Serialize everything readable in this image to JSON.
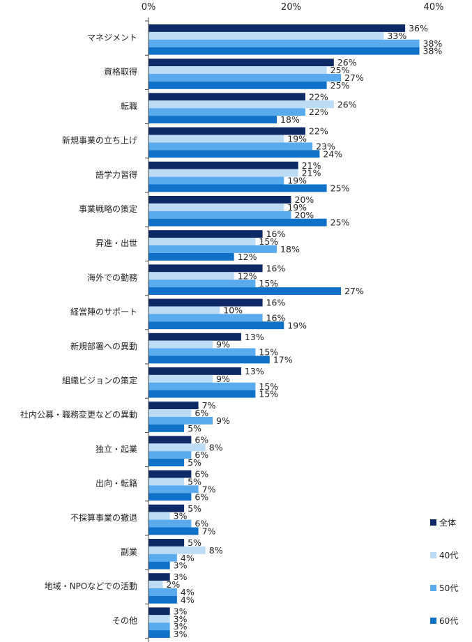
{
  "chart_data": {
    "type": "bar",
    "orientation": "horizontal",
    "xlim": [
      0,
      40
    ],
    "x_ticks": [
      "0%",
      "20%",
      "40%"
    ],
    "x_tick_values": [
      0,
      20,
      40
    ],
    "grid": false,
    "legend_position": "bottom-right",
    "value_suffix": "%",
    "categories": [
      "マネジメント",
      "資格取得",
      "転職",
      "新規事業の立ち上げ",
      "語学力習得",
      "事業戦略の策定",
      "昇進・出世",
      "海外での勤務",
      "経営陣のサポート",
      "新規部署への異動",
      "組織ビジョンの策定",
      "社内公募・職務変更などの異動",
      "独立・起業",
      "出向・転籍",
      "不採算事業の撤退",
      "副業",
      "地域・NPOなどでの活動",
      "その他"
    ],
    "series": [
      {
        "name": "全体",
        "color": "#0d2a66",
        "values": [
          36,
          26,
          22,
          22,
          21,
          20,
          16,
          16,
          16,
          13,
          13,
          7,
          6,
          6,
          5,
          5,
          3,
          3
        ]
      },
      {
        "name": "40代",
        "color": "#bcdcf6",
        "values": [
          33,
          25,
          26,
          19,
          21,
          19,
          15,
          12,
          10,
          9,
          9,
          6,
          8,
          5,
          3,
          8,
          2,
          3
        ]
      },
      {
        "name": "50代",
        "color": "#5aabee",
        "values": [
          38,
          27,
          22,
          23,
          19,
          20,
          18,
          15,
          16,
          15,
          15,
          9,
          6,
          7,
          6,
          4,
          4,
          3
        ]
      },
      {
        "name": "60代",
        "color": "#0f72c8",
        "values": [
          38,
          25,
          18,
          24,
          25,
          25,
          12,
          27,
          19,
          17,
          15,
          5,
          5,
          6,
          7,
          3,
          4,
          3
        ]
      }
    ]
  }
}
